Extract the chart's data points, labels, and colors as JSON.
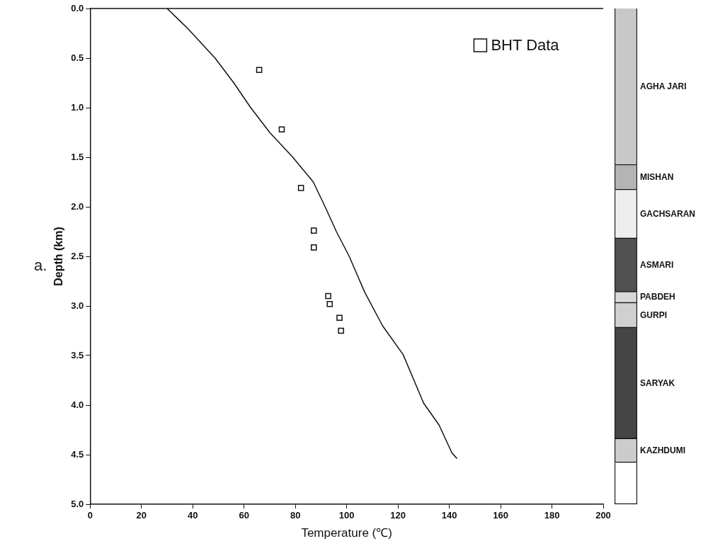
{
  "chart_data": [
    {
      "type": "scatter",
      "xlabel": "Temperature (℃)",
      "ylabel": "Depth (km)",
      "annotations": [
        "a."
      ],
      "xlim": [
        0,
        200
      ],
      "xticks": [
        0,
        20,
        40,
        60,
        80,
        100,
        120,
        140,
        160,
        180,
        200
      ],
      "ylim": [
        5,
        0
      ],
      "yticks": [
        {
          "value": 0,
          "label": "0.0"
        },
        {
          "value": 0.5,
          "label": "0.5"
        },
        {
          "value": 1,
          "label": "1.0"
        },
        {
          "value": 1.5,
          "label": "1.5"
        },
        {
          "value": 2,
          "label": "2.0"
        },
        {
          "value": 2.5,
          "label": "2.5"
        },
        {
          "value": 3,
          "label": "3.0"
        },
        {
          "value": 3.5,
          "label": "3.5"
        },
        {
          "value": 4,
          "label": "4.0"
        },
        {
          "value": 4.5,
          "label": "4.5"
        },
        {
          "value": 5,
          "label": "5.0"
        }
      ],
      "grid": false,
      "legend": "top right",
      "series": [
        {
          "type": "line",
          "color": "#111111",
          "marker": "none",
          "line_style": "solid",
          "x": [
            30,
            38,
            48.7,
            56,
            62.6,
            70,
            79,
            87,
            91.6,
            96,
            101,
            107,
            114,
            122,
            130,
            136,
            141,
            143
          ],
          "values": [
            0,
            0.2,
            0.5,
            0.75,
            1,
            1.25,
            1.5,
            1.75,
            2,
            2.25,
            2.5,
            2.86,
            3.2,
            3.49,
            3.98,
            4.2,
            4.48,
            4.54
          ]
        },
        {
          "type": "scatter",
          "name": "BHT Data",
          "color": "#111111",
          "marker": "square",
          "x": [
            65.9,
            74.7,
            82.2,
            87.2,
            87.2,
            92.8,
            93.4,
            97.2,
            97.8
          ],
          "values": [
            0.62,
            1.22,
            1.81,
            2.24,
            2.41,
            2.9,
            2.98,
            3.12,
            3.25
          ]
        }
      ]
    },
    {
      "type": "bar",
      "stacked": true,
      "categories": [
        null
      ],
      "ylim": [
        5,
        0
      ],
      "tick_labels": false,
      "series": [
        {
          "name": "AGHA JARI",
          "color": "#c8c8c8",
          "values": [
            1.58
          ]
        },
        {
          "name": "MISHAN",
          "color": "#b4b4b4",
          "values": [
            0.25
          ]
        },
        {
          "name": "GACHSARAN",
          "color": "#eeeeee",
          "values": [
            0.49
          ]
        },
        {
          "name": "ASMARI",
          "color": "#505050",
          "values": [
            0.54
          ]
        },
        {
          "name": "PABDEH",
          "color": "#d8d8d8",
          "values": [
            0.11
          ]
        },
        {
          "name": "GURPI",
          "color": "#d0d0d0",
          "values": [
            0.25
          ]
        },
        {
          "name": "SARYAK",
          "color": "#454545",
          "values": [
            1.12
          ]
        },
        {
          "name": "KAZHDUMI",
          "color": "#cccccc",
          "values": [
            0.24
          ]
        },
        {
          "color": "#ffffff",
          "values": [
            0.42
          ]
        }
      ]
    }
  ]
}
